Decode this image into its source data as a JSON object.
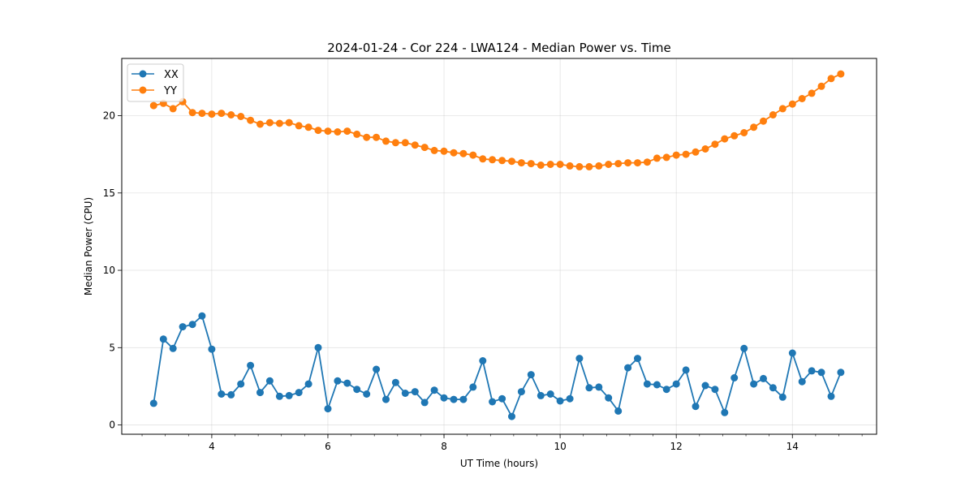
{
  "chart_data": {
    "type": "line",
    "title": "2024-01-24 - Cor 224 - LWA124 - Median Power vs. Time",
    "xlabel": "UT Time (hours)",
    "ylabel": "Median Power (CPU)",
    "xlim": [
      2.45,
      15.45
    ],
    "ylim": [
      -0.6,
      23.7
    ],
    "xticks": [
      4,
      6,
      8,
      10,
      12,
      14
    ],
    "xtick_labels": [
      "4",
      "6",
      "8",
      "10",
      "12",
      "14"
    ],
    "yticks": [
      0,
      5,
      10,
      15,
      20
    ],
    "ytick_labels": [
      "0",
      "5",
      "10",
      "15",
      "20"
    ],
    "grid": true,
    "legend_position": "upper-left",
    "x": [
      3.0,
      3.167,
      3.333,
      3.5,
      3.667,
      3.833,
      4.0,
      4.167,
      4.333,
      4.5,
      4.667,
      4.833,
      5.0,
      5.167,
      5.333,
      5.5,
      5.667,
      5.833,
      6.0,
      6.167,
      6.333,
      6.5,
      6.667,
      6.833,
      7.0,
      7.167,
      7.333,
      7.5,
      7.667,
      7.833,
      8.0,
      8.167,
      8.333,
      8.5,
      8.667,
      8.833,
      9.0,
      9.167,
      9.333,
      9.5,
      9.667,
      9.833,
      10.0,
      10.167,
      10.333,
      10.5,
      10.667,
      10.833,
      11.0,
      11.167,
      11.333,
      11.5,
      11.667,
      11.833,
      12.0,
      12.167,
      12.333,
      12.5,
      12.667,
      12.833,
      13.0,
      13.167,
      13.333,
      13.5,
      13.667,
      13.833,
      14.0,
      14.167,
      14.333,
      14.5,
      14.667,
      14.833
    ],
    "series": [
      {
        "name": "XX",
        "color": "#1f77b4",
        "values": [
          1.4,
          5.55,
          4.95,
          6.35,
          6.5,
          7.05,
          4.9,
          2.0,
          1.95,
          2.65,
          3.85,
          2.1,
          2.85,
          1.85,
          1.9,
          2.1,
          2.65,
          5.0,
          1.05,
          2.85,
          2.7,
          2.3,
          2.0,
          3.6,
          1.65,
          2.75,
          2.05,
          2.15,
          1.45,
          2.25,
          1.75,
          1.65,
          1.65,
          2.45,
          4.15,
          1.5,
          1.7,
          0.55,
          2.15,
          3.25,
          1.9,
          2.0,
          1.55,
          1.7,
          4.3,
          2.4,
          2.45,
          1.75,
          0.9,
          3.7,
          4.3,
          2.65,
          2.6,
          2.3,
          2.65,
          3.55,
          1.2,
          2.55,
          2.3,
          0.8,
          3.05,
          4.95,
          2.65,
          3.0,
          2.4,
          1.8,
          4.65,
          2.8,
          3.5,
          3.4,
          1.85,
          3.4
        ]
      },
      {
        "name": "YY",
        "color": "#ff7f0e",
        "values": [
          20.65,
          20.8,
          20.45,
          20.9,
          20.2,
          20.15,
          20.1,
          20.15,
          20.05,
          19.95,
          19.7,
          19.45,
          19.55,
          19.5,
          19.55,
          19.35,
          19.25,
          19.05,
          19.0,
          18.95,
          19.0,
          18.8,
          18.6,
          18.6,
          18.35,
          18.25,
          18.25,
          18.1,
          17.95,
          17.75,
          17.7,
          17.6,
          17.55,
          17.45,
          17.2,
          17.15,
          17.1,
          17.05,
          16.95,
          16.9,
          16.8,
          16.85,
          16.85,
          16.75,
          16.7,
          16.7,
          16.75,
          16.85,
          16.9,
          16.95,
          16.95,
          17.0,
          17.25,
          17.3,
          17.45,
          17.5,
          17.65,
          17.85,
          18.15,
          18.5,
          18.7,
          18.9,
          19.25,
          19.65,
          20.05,
          20.45,
          20.75,
          21.1,
          21.45,
          21.9,
          22.4,
          22.7
        ]
      }
    ]
  }
}
